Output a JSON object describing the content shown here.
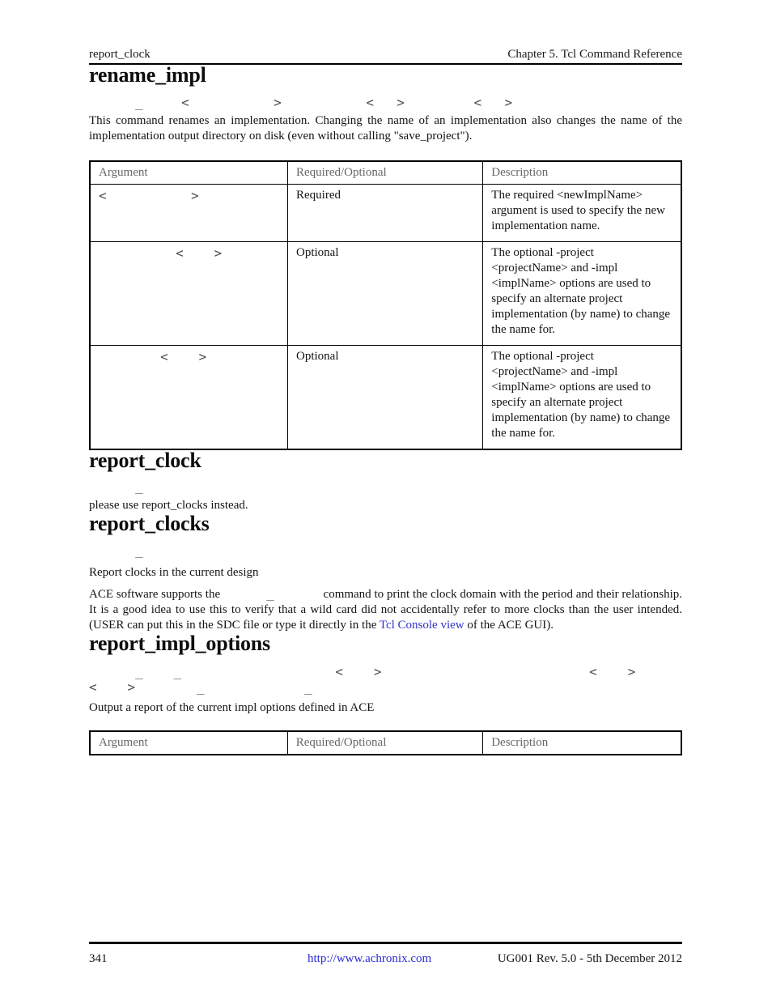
{
  "header": {
    "left": "report_clock",
    "right": "Chapter 5. Tcl Command Reference"
  },
  "rename_impl": {
    "title": "rename_impl",
    "syntax": "      _     <           >           <   >         <   >",
    "description": "This command renames an implementation. Changing the name of an implementation also changes the name of the implementation output directory on disk (even without calling \"save_project\").",
    "table": {
      "col_argument": "Argument",
      "col_required": "Required/Optional",
      "col_description": "Description",
      "rows": [
        {
          "argument": "<           >",
          "required": "Required",
          "description": "The required <newImplName> argument is used to specify the new implementation name."
        },
        {
          "argument": "          <    >",
          "required": "Optional",
          "description": "The optional -project <projectName> and -impl <implName> options are used to specify an alternate project implementation (by name) to change the name for."
        },
        {
          "argument": "        <    >",
          "required": "Optional",
          "description": "The optional -project <projectName> and -impl <implName> options are used to specify an alternate project implementation (by name) to change the name for."
        }
      ]
    }
  },
  "report_clock": {
    "title": "report_clock",
    "syntax": "      _",
    "description": "please use report_clocks instead."
  },
  "report_clocks": {
    "title": "report_clocks",
    "syntax": "      _",
    "short_description": "Report clocks in the current design",
    "para_before": "ACE software supports the",
    "para_gap": "      _      ",
    "para_mid": " command to print the clock domain with the period and their relationship. It is a good idea to use this to verify that a wild card did not accidentally refer to more clocks than the user intended. (USER can put this in the SDC file or type it directly in the ",
    "link_text": "Tcl Console view",
    "para_end": " of the ACE GUI)."
  },
  "report_impl_options": {
    "title": "report_impl_options",
    "syntax_line1": "      _    _                    <    >                           <    >",
    "syntax_line2": "<    >        _             _",
    "description": "Output a report of the current impl options defined in ACE",
    "table": {
      "col_argument": "Argument",
      "col_required": "Required/Optional",
      "col_description": "Description"
    }
  },
  "footer": {
    "page_number": "341",
    "link": "http://www.achronix.com",
    "revision": "UG001 Rev. 5.0 - 5th December 2012"
  },
  "colors": {
    "body_link": "#3333cc",
    "footer_link": "#2b2bd5",
    "table_header_text": "#666666",
    "rule": "#000000"
  }
}
